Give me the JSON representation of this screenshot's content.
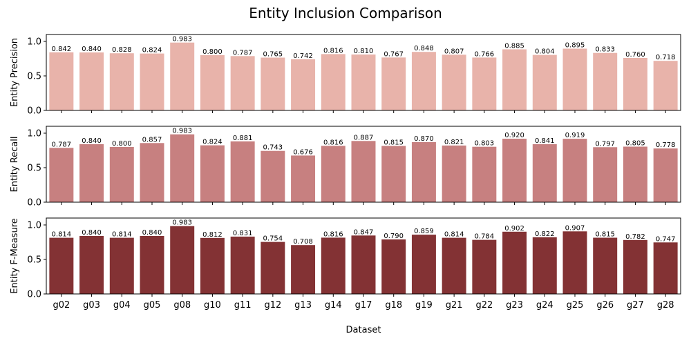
{
  "chart_data": {
    "type": "bar",
    "title": "Entity Inclusion Comparison",
    "xlabel": "Dataset",
    "categories": [
      "g02",
      "g03",
      "g04",
      "g05",
      "g08",
      "g10",
      "g11",
      "g12",
      "g13",
      "g14",
      "g17",
      "g18",
      "g19",
      "g21",
      "g22",
      "g23",
      "g24",
      "g25",
      "g26",
      "g27",
      "g28"
    ],
    "ylim": [
      0,
      1.1
    ],
    "yticks": [
      "0.0",
      "0.5",
      "1.0"
    ],
    "series": [
      {
        "ylabel": "Entity Precision",
        "color": "#e8b3aa",
        "values": [
          0.842,
          0.84,
          0.828,
          0.824,
          0.983,
          0.8,
          0.787,
          0.765,
          0.742,
          0.816,
          0.81,
          0.767,
          0.848,
          0.807,
          0.766,
          0.885,
          0.804,
          0.895,
          0.833,
          0.76,
          0.718
        ],
        "labels": [
          "0.842",
          "0.840",
          "0.828",
          "0.824",
          "0.983",
          "0.800",
          "0.787",
          "0.765",
          "0.742",
          "0.816",
          "0.810",
          "0.767",
          "0.848",
          "0.807",
          "0.766",
          "0.885",
          "0.804",
          "0.895",
          "0.833",
          "0.760",
          "0.718"
        ]
      },
      {
        "ylabel": "Entity Recall",
        "color": "#c78080",
        "values": [
          0.787,
          0.84,
          0.8,
          0.857,
          0.983,
          0.824,
          0.881,
          0.743,
          0.676,
          0.816,
          0.887,
          0.815,
          0.87,
          0.821,
          0.803,
          0.92,
          0.841,
          0.919,
          0.797,
          0.805,
          0.778
        ],
        "labels": [
          "0.787",
          "0.840",
          "0.800",
          "0.857",
          "0.983",
          "0.824",
          "0.881",
          "0.743",
          "0.676",
          "0.816",
          "0.887",
          "0.815",
          "0.870",
          "0.821",
          "0.803",
          "0.920",
          "0.841",
          "0.919",
          "0.797",
          "0.805",
          "0.778"
        ]
      },
      {
        "ylabel": "Entity F-Measure",
        "color": "#833234",
        "values": [
          0.814,
          0.84,
          0.814,
          0.84,
          0.983,
          0.812,
          0.831,
          0.754,
          0.708,
          0.816,
          0.847,
          0.79,
          0.859,
          0.814,
          0.784,
          0.902,
          0.822,
          0.907,
          0.815,
          0.782,
          0.747
        ],
        "labels": [
          "0.814",
          "0.840",
          "0.814",
          "0.840",
          "0.983",
          "0.812",
          "0.831",
          "0.754",
          "0.708",
          "0.816",
          "0.847",
          "0.790",
          "0.859",
          "0.814",
          "0.784",
          "0.902",
          "0.822",
          "0.907",
          "0.815",
          "0.782",
          "0.747"
        ]
      }
    ],
    "grid": false,
    "legend": "none"
  }
}
